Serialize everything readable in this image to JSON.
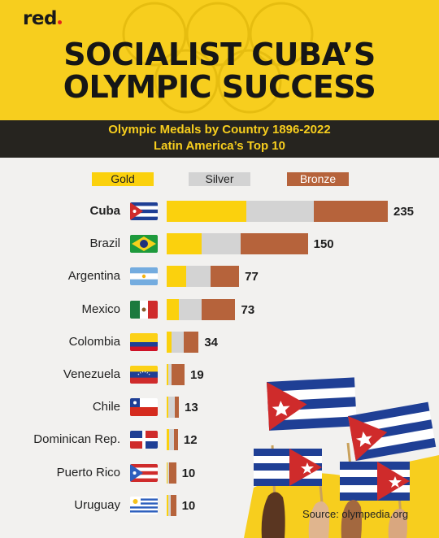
{
  "brand": {
    "logo_text": "red"
  },
  "title": {
    "line1": "SOCIALIST CUBA’S",
    "line2": "OLYMPIC SUCCESS"
  },
  "subtitle": {
    "line1": "Olympic Medals by Country 1896-2022",
    "line2": "Latin America’s Top 10"
  },
  "colors": {
    "gold": "#fbd10d",
    "silver": "#d3d3d3",
    "bronze": "#b6633b",
    "accent_yellow": "#f7ce1e",
    "dark_band": "#26241f"
  },
  "source": "Source: olympedia.org",
  "chart_data": {
    "type": "bar",
    "orientation": "horizontal",
    "stacked": true,
    "title": "Olympic Medals by Country 1896-2022",
    "subtitle": "Latin America’s Top 10",
    "legend": [
      "Gold",
      "Silver",
      "Bronze"
    ],
    "legend_position": "top",
    "categories": [
      "Cuba",
      "Brazil",
      "Argentina",
      "Mexico",
      "Colombia",
      "Venezuela",
      "Chile",
      "Dominican Rep.",
      "Puerto Rico",
      "Uruguay"
    ],
    "series": [
      {
        "name": "Gold",
        "values": [
          85,
          37,
          21,
          13,
          5,
          2,
          2,
          3,
          1,
          2
        ]
      },
      {
        "name": "Silver",
        "values": [
          71,
          42,
          26,
          24,
          13,
          3,
          7,
          5,
          2,
          2
        ]
      },
      {
        "name": "Bronze",
        "values": [
          79,
          71,
          30,
          36,
          16,
          14,
          4,
          4,
          7,
          6
        ]
      }
    ],
    "totals": [
      235,
      150,
      77,
      73,
      34,
      19,
      13,
      12,
      10,
      10
    ],
    "highlight": "Cuba"
  }
}
